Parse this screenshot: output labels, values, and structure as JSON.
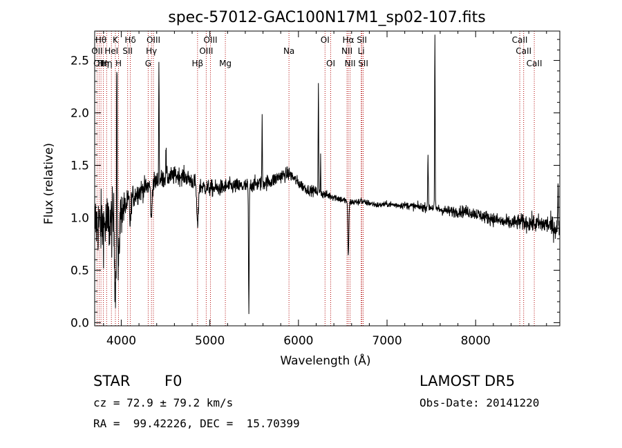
{
  "chart_data": {
    "type": "line",
    "title": "spec-57012-GAC100N17M1_sp02-107.fits",
    "xlabel": "Wavelength (Å)",
    "ylabel": "Flux (relative)",
    "xlim": [
      3700,
      8950
    ],
    "ylim": [
      -0.03,
      2.78
    ],
    "xticks": [
      {
        "value": 4000,
        "label": "4000"
      },
      {
        "value": 5000,
        "label": "5000"
      },
      {
        "value": 6000,
        "label": "6000"
      },
      {
        "value": 7000,
        "label": "7000"
      },
      {
        "value": 8000,
        "label": "8000"
      }
    ],
    "yticks": [
      {
        "value": 0.0,
        "label": "0.0"
      },
      {
        "value": 0.5,
        "label": "0.5"
      },
      {
        "value": 1.0,
        "label": "1.0"
      },
      {
        "value": 1.5,
        "label": "1.5"
      },
      {
        "value": 2.0,
        "label": "2.0"
      },
      {
        "value": 2.5,
        "label": "2.5"
      }
    ],
    "line_color": "#000000",
    "marker_color": "#b00000",
    "spectral_lines": [
      {
        "wavelength": 3727,
        "label": "OII",
        "row": 2
      },
      {
        "wavelength": 3750,
        "label": "OII",
        "row": 3
      },
      {
        "wavelength": 3771,
        "label": "Hθ",
        "row": 1
      },
      {
        "wavelength": 3798,
        "label": "Hη",
        "row": 3
      },
      {
        "wavelength": 3835,
        "label": "Hη",
        "row": 3
      },
      {
        "wavelength": 3889,
        "label": "HeI",
        "row": 2
      },
      {
        "wavelength": 3934,
        "label": "K",
        "row": 1
      },
      {
        "wavelength": 3969,
        "label": "H",
        "row": 3
      },
      {
        "wavelength": 4102,
        "label": "Hδ",
        "row": 1
      },
      {
        "wavelength": 4072,
        "label": "SII",
        "row": 2
      },
      {
        "wavelength": 4304,
        "label": "G",
        "row": 3
      },
      {
        "wavelength": 4341,
        "label": "Hγ",
        "row": 2
      },
      {
        "wavelength": 4363,
        "label": "OIII",
        "row": 1
      },
      {
        "wavelength": 4861,
        "label": "Hβ",
        "row": 3
      },
      {
        "wavelength": 4959,
        "label": "OIII",
        "row": 2
      },
      {
        "wavelength": 5007,
        "label": "OIII",
        "row": 1
      },
      {
        "wavelength": 5175,
        "label": "Mg",
        "row": 3
      },
      {
        "wavelength": 5893,
        "label": "Na",
        "row": 2
      },
      {
        "wavelength": 6300,
        "label": "OI",
        "row": 1
      },
      {
        "wavelength": 6364,
        "label": "OI",
        "row": 3
      },
      {
        "wavelength": 6548,
        "label": "NII",
        "row": 2
      },
      {
        "wavelength": 6563,
        "label": "Hα",
        "row": 1
      },
      {
        "wavelength": 6583,
        "label": "NII",
        "row": 3
      },
      {
        "wavelength": 6708,
        "label": "Li",
        "row": 2
      },
      {
        "wavelength": 6716,
        "label": "SII",
        "row": 1
      },
      {
        "wavelength": 6731,
        "label": "SII",
        "row": 3
      },
      {
        "wavelength": 8498,
        "label": "CaII",
        "row": 1
      },
      {
        "wavelength": 8542,
        "label": "CaII",
        "row": 2
      },
      {
        "wavelength": 8662,
        "label": "CaII",
        "row": 3
      }
    ],
    "spectrum": {
      "knots": [
        [
          3700,
          0.95
        ],
        [
          3800,
          0.92
        ],
        [
          3900,
          0.95
        ],
        [
          4000,
          1.05
        ],
        [
          4100,
          1.18
        ],
        [
          4200,
          1.25
        ],
        [
          4300,
          1.3
        ],
        [
          4400,
          1.35
        ],
        [
          4500,
          1.38
        ],
        [
          4600,
          1.4
        ],
        [
          4700,
          1.4
        ],
        [
          4800,
          1.35
        ],
        [
          4900,
          1.3
        ],
        [
          5000,
          1.28
        ],
        [
          5100,
          1.28
        ],
        [
          5200,
          1.3
        ],
        [
          5300,
          1.3
        ],
        [
          5400,
          1.3
        ],
        [
          5500,
          1.32
        ],
        [
          5600,
          1.33
        ],
        [
          5700,
          1.35
        ],
        [
          5800,
          1.4
        ],
        [
          5900,
          1.42
        ],
        [
          6000,
          1.33
        ],
        [
          6100,
          1.27
        ],
        [
          6200,
          1.25
        ],
        [
          6300,
          1.22
        ],
        [
          6400,
          1.2
        ],
        [
          6500,
          1.17
        ],
        [
          6600,
          1.15
        ],
        [
          6700,
          1.15
        ],
        [
          6800,
          1.14
        ],
        [
          6900,
          1.12
        ],
        [
          7000,
          1.13
        ],
        [
          7100,
          1.12
        ],
        [
          7200,
          1.12
        ],
        [
          7300,
          1.11
        ],
        [
          7400,
          1.1
        ],
        [
          7500,
          1.1
        ],
        [
          7600,
          1.08
        ],
        [
          7700,
          1.06
        ],
        [
          7800,
          1.06
        ],
        [
          7900,
          1.06
        ],
        [
          8000,
          1.04
        ],
        [
          8100,
          1.01
        ],
        [
          8200,
          0.99
        ],
        [
          8300,
          0.96
        ],
        [
          8400,
          0.95
        ],
        [
          8500,
          0.96
        ],
        [
          8600,
          0.95
        ],
        [
          8700,
          0.94
        ],
        [
          8800,
          0.94
        ],
        [
          8900,
          0.9
        ]
      ],
      "noise": [
        [
          3700,
          0.22
        ],
        [
          3950,
          0.22
        ],
        [
          4050,
          0.09
        ],
        [
          4300,
          0.07
        ],
        [
          4700,
          0.06
        ],
        [
          5800,
          0.05
        ],
        [
          6000,
          0.04
        ],
        [
          6500,
          0.025
        ],
        [
          7000,
          0.02
        ],
        [
          7400,
          0.03
        ],
        [
          7800,
          0.04
        ],
        [
          8400,
          0.05
        ],
        [
          8800,
          0.07
        ],
        [
          8900,
          0.08
        ]
      ],
      "features": [
        [
          3934,
          -0.65,
          8
        ],
        [
          3969,
          -0.55,
          8
        ],
        [
          4102,
          -0.25,
          6
        ],
        [
          4340,
          -0.35,
          7
        ],
        [
          4861,
          -0.4,
          9
        ],
        [
          5440,
          -1.2,
          4
        ],
        [
          6563,
          -0.5,
          6
        ],
        [
          6705,
          0.05,
          4
        ],
        [
          3950,
          1.7,
          3
        ],
        [
          4425,
          1.1,
          3
        ],
        [
          4505,
          0.28,
          3
        ],
        [
          5590,
          0.6,
          3
        ],
        [
          6225,
          1.05,
          3
        ],
        [
          6250,
          0.4,
          2
        ],
        [
          7462,
          0.45,
          4
        ],
        [
          7540,
          1.65,
          3
        ],
        [
          8930,
          0.35,
          4
        ]
      ]
    }
  },
  "info": {
    "object_class": "STAR",
    "subclass": "F0",
    "survey": "LAMOST DR5",
    "redshift": "cz = 72.9 ± 79.2 km/s",
    "obs_date": "Obs-Date: 20141220",
    "coords": "RA =  99.42226, DEC =  15.70399"
  }
}
